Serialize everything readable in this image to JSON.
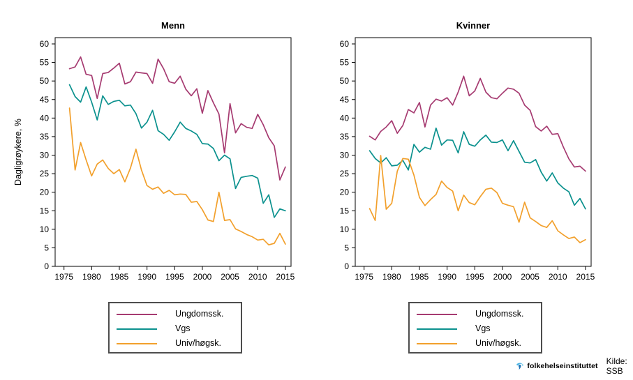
{
  "page": {
    "background": "#ffffff"
  },
  "axis": {
    "line_color": "#000000",
    "tick_label_color": "#000000",
    "tick_label_size": 12,
    "title_size": 13
  },
  "legend": {
    "border_color": "#4d4d4d"
  },
  "footer": {
    "logo_icon": "folkehelseinstituttet-swirl",
    "logo_text": "folkehelseinstituttet",
    "logo_text_color": "#2d5fa6",
    "logo_icon_colors": [
      "#4cb5e3",
      "#1f74b8",
      "#7fd0ee"
    ],
    "source_label": "Kilde: SSB",
    "source_color": "#3a3a3a"
  },
  "chart_data": [
    {
      "type": "line",
      "title": "Menn",
      "ylabel": "Dagligrøykere, %",
      "xlabel": "",
      "grid": false,
      "legend_position": "below",
      "ylim": [
        0,
        60
      ],
      "yticks": [
        0,
        5,
        10,
        15,
        20,
        25,
        30,
        35,
        40,
        45,
        50,
        55,
        60
      ],
      "xticks": [
        1975,
        1980,
        1985,
        1990,
        1995,
        2000,
        2005,
        2010,
        2015
      ],
      "x": [
        1976,
        1977,
        1978,
        1979,
        1980,
        1981,
        1982,
        1983,
        1984,
        1985,
        1986,
        1987,
        1988,
        1989,
        1990,
        1991,
        1992,
        1993,
        1994,
        1995,
        1996,
        1997,
        1998,
        1999,
        2000,
        2001,
        2002,
        2003,
        2004,
        2005,
        2006,
        2007,
        2008,
        2009,
        2010,
        2011,
        2012,
        2013,
        2014,
        2015
      ],
      "series": [
        {
          "name": "Ungdomssk.",
          "color": "#A63B71",
          "values": [
            53.3,
            53.8,
            56.5,
            51.8,
            51.5,
            45.3,
            52.0,
            52.3,
            53.5,
            54.8,
            49.2,
            49.8,
            52.4,
            52.2,
            52.0,
            49.4,
            55.9,
            53.3,
            49.8,
            49.4,
            51.3,
            47.8,
            46.0,
            47.9,
            41.3,
            47.4,
            44.1,
            41.1,
            30.6,
            43.9,
            36.0,
            38.5,
            37.5,
            37.2,
            41.0,
            38.2,
            34.7,
            32.5,
            23.3,
            26.8
          ]
        },
        {
          "name": "Vgs",
          "color": "#0B918E",
          "values": [
            49.0,
            45.8,
            44.3,
            48.4,
            44.3,
            39.5,
            46.0,
            43.7,
            44.5,
            44.8,
            43.3,
            43.5,
            41.2,
            37.3,
            38.9,
            42.1,
            36.6,
            35.6,
            34.0,
            36.3,
            38.9,
            37.2,
            36.5,
            35.6,
            33.1,
            33.0,
            31.8,
            28.5,
            30.0,
            29.0,
            21.0,
            24.0,
            24.3,
            24.5,
            23.8,
            17.0,
            19.3,
            13.2,
            15.5,
            15.0
          ]
        },
        {
          "name": "Univ/høgsk.",
          "color": "#F2A02C",
          "values": [
            42.7,
            26.0,
            33.4,
            28.7,
            24.4,
            27.6,
            28.7,
            26.4,
            25.0,
            26.1,
            22.8,
            26.5,
            31.6,
            26.0,
            21.8,
            20.8,
            21.4,
            19.7,
            20.5,
            19.3,
            19.5,
            19.4,
            17.3,
            17.5,
            15.3,
            12.5,
            12.1,
            20.0,
            12.4,
            12.6,
            10.1,
            9.4,
            8.6,
            8.0,
            7.1,
            7.3,
            5.8,
            6.2,
            8.9,
            6.0
          ]
        }
      ]
    },
    {
      "type": "line",
      "title": "Kvinner",
      "ylabel": "",
      "xlabel": "",
      "grid": false,
      "legend_position": "below",
      "ylim": [
        0,
        60
      ],
      "yticks": [
        0,
        5,
        10,
        15,
        20,
        25,
        30,
        35,
        40,
        45,
        50,
        55,
        60
      ],
      "xticks": [
        1975,
        1980,
        1985,
        1990,
        1995,
        2000,
        2005,
        2010,
        2015
      ],
      "x": [
        1976,
        1977,
        1978,
        1979,
        1980,
        1981,
        1982,
        1983,
        1984,
        1985,
        1986,
        1987,
        1988,
        1989,
        1990,
        1991,
        1992,
        1993,
        1994,
        1995,
        1996,
        1997,
        1998,
        1999,
        2000,
        2001,
        2002,
        2003,
        2004,
        2005,
        2006,
        2007,
        2008,
        2009,
        2010,
        2011,
        2012,
        2013,
        2014,
        2015
      ],
      "series": [
        {
          "name": "Ungdomssk.",
          "color": "#A63B71",
          "values": [
            35.1,
            34.1,
            36.4,
            37.6,
            39.3,
            35.9,
            38.0,
            42.3,
            41.4,
            44.2,
            37.6,
            43.5,
            45.1,
            44.6,
            45.5,
            43.5,
            47.0,
            51.3,
            46.0,
            47.3,
            50.7,
            47.0,
            45.5,
            45.2,
            46.7,
            48.1,
            47.8,
            46.7,
            43.5,
            42.1,
            37.7,
            36.5,
            37.8,
            35.6,
            35.8,
            32.2,
            29.0,
            26.8,
            27.0,
            25.7
          ]
        },
        {
          "name": "Vgs",
          "color": "#0B918E",
          "values": [
            31.2,
            29.1,
            27.9,
            29.3,
            27.1,
            27.3,
            28.6,
            26.0,
            32.9,
            30.8,
            32.1,
            31.6,
            37.3,
            32.7,
            34.1,
            34.0,
            30.6,
            36.3,
            32.9,
            32.4,
            34.1,
            35.4,
            33.5,
            33.4,
            34.1,
            31.2,
            33.9,
            31.0,
            28.1,
            27.9,
            28.8,
            25.4,
            23.0,
            25.2,
            22.5,
            21.1,
            20.1,
            16.5,
            18.3,
            15.5
          ]
        },
        {
          "name": "Univ/høgsk.",
          "color": "#F2A02C",
          "values": [
            15.6,
            12.4,
            29.9,
            15.4,
            17.0,
            25.7,
            29.1,
            28.9,
            24.6,
            18.6,
            16.4,
            18.0,
            19.4,
            23.0,
            21.3,
            20.3,
            15.0,
            19.2,
            17.2,
            16.6,
            18.8,
            20.8,
            21.1,
            19.9,
            17.0,
            16.5,
            16.1,
            11.9,
            17.3,
            13.1,
            12.1,
            11.0,
            10.5,
            12.3,
            9.6,
            8.5,
            7.5,
            7.9,
            6.4,
            7.2
          ]
        }
      ]
    }
  ]
}
